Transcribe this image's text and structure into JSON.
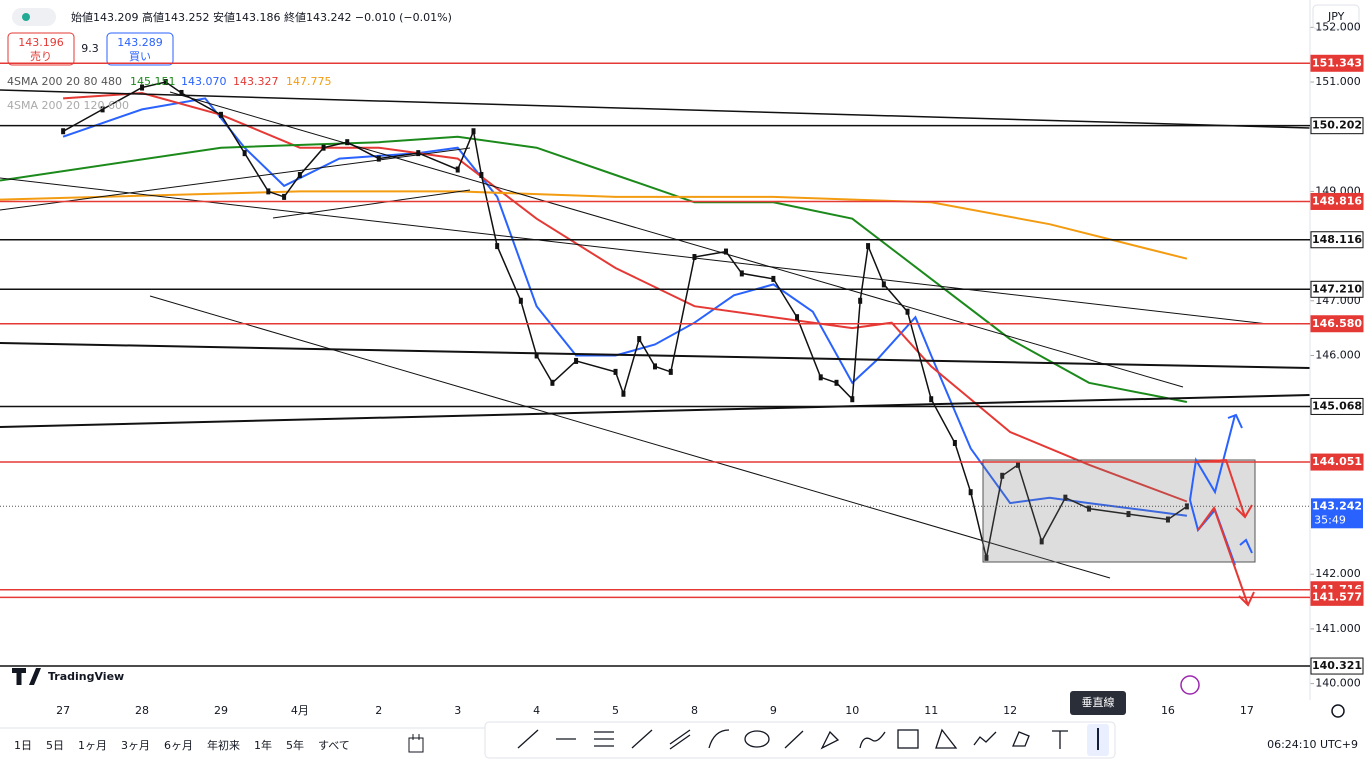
{
  "header": {
    "ohlc": "始値143.209 高値143.252 安値143.186 終値143.242 −0.010 (−0.01%)",
    "sell_price": "143.196",
    "sell_label": "売り",
    "spread": "9.3",
    "buy_price": "143.289",
    "buy_label": "買い",
    "currency": "JPY"
  },
  "indicators": [
    {
      "name": "4SMA 200 20 80 480",
      "values": [
        "145.151",
        "143.070",
        "143.327",
        "147.775"
      ]
    },
    {
      "name": "4SMA 200 20 120 600"
    }
  ],
  "chart": {
    "type": "candlestick-close",
    "ylim": [
      139.7,
      152.5
    ],
    "xlim": [
      -0.8,
      15.8
    ],
    "yticks": [
      {
        "value": 152,
        "label": "152.000"
      },
      {
        "value": 151,
        "label": "151.000"
      },
      {
        "value": 149,
        "label": "149.000"
      },
      {
        "value": 147,
        "label": "147.000"
      },
      {
        "value": 146,
        "label": "146.000"
      },
      {
        "value": 142,
        "label": "142.000"
      },
      {
        "value": 141,
        "label": "141.000"
      },
      {
        "value": 140,
        "label": "140.000"
      }
    ],
    "x_labels": [
      "27",
      "28",
      "29",
      "4月",
      "2",
      "3",
      "4",
      "5",
      "8",
      "9",
      "10",
      "11",
      "12",
      null,
      "16",
      "17"
    ],
    "price": {
      "color": "#111111",
      "x": [
        0,
        0.5,
        1,
        1.3,
        1.5,
        2,
        2.3,
        2.6,
        2.8,
        3,
        3.3,
        3.6,
        4,
        4.5,
        5,
        5.2,
        5.3,
        5.5,
        5.8,
        6,
        6.2,
        6.5,
        7,
        7.1,
        7.3,
        7.5,
        7.7,
        8,
        8.4,
        8.6,
        9,
        9.3,
        9.6,
        9.8,
        10,
        10.1,
        10.2,
        10.4,
        10.7,
        11,
        11.3,
        11.5,
        11.7,
        11.9,
        12.1,
        12.4,
        12.7,
        13,
        13.5,
        14,
        14.24
      ],
      "values": [
        150.1,
        150.5,
        150.9,
        151.0,
        150.8,
        150.4,
        149.7,
        149.0,
        148.9,
        149.3,
        149.8,
        149.9,
        149.6,
        149.7,
        149.4,
        150.1,
        149.3,
        148.0,
        147.0,
        146.0,
        145.5,
        145.9,
        145.7,
        145.3,
        146.3,
        145.8,
        145.7,
        147.8,
        147.9,
        147.5,
        147.4,
        146.7,
        145.6,
        145.5,
        145.2,
        147.0,
        148.0,
        147.3,
        146.8,
        145.2,
        144.4,
        143.5,
        142.3,
        143.8,
        144.0,
        142.6,
        143.4,
        143.2,
        143.1,
        143.0,
        143.24
      ]
    },
    "series": [
      {
        "color": "#2962ff",
        "x": [
          0,
          1,
          1.8,
          2.3,
          2.8,
          3.5,
          4.5,
          5,
          5.5,
          6,
          6.5,
          7,
          7.5,
          8,
          8.5,
          9,
          9.5,
          10,
          10.3,
          10.8,
          11,
          11.5,
          12,
          12.5,
          13,
          14.24
        ],
        "values": [
          150.0,
          150.5,
          150.7,
          149.8,
          149.1,
          149.6,
          149.7,
          149.8,
          148.9,
          146.9,
          146.0,
          146.0,
          146.2,
          146.6,
          147.1,
          147.3,
          146.8,
          145.5,
          145.9,
          146.7,
          146.0,
          144.3,
          143.3,
          143.4,
          143.3,
          143.07
        ]
      },
      {
        "color": "#e53935",
        "x": [
          0,
          1,
          2,
          3,
          4,
          5,
          6,
          7,
          8,
          9,
          10,
          10.5,
          11,
          12,
          13,
          14.24
        ],
        "values": [
          150.7,
          150.8,
          150.4,
          149.8,
          149.8,
          149.6,
          148.5,
          147.6,
          146.9,
          146.7,
          146.5,
          146.6,
          145.8,
          144.6,
          144.0,
          143.33
        ]
      },
      {
        "color": "#1b8a1b",
        "x": [
          -0.8,
          2,
          4,
          5,
          6,
          7,
          8,
          9,
          10,
          11,
          12,
          13,
          14.24
        ],
        "values": [
          149.2,
          149.8,
          149.9,
          150.0,
          149.8,
          149.3,
          148.8,
          148.8,
          148.5,
          147.4,
          146.3,
          145.5,
          145.15
        ]
      },
      {
        "color": "#f39c12",
        "x": [
          -0.8,
          3,
          5,
          7,
          9,
          11,
          12.5,
          14.24
        ],
        "values": [
          148.85,
          149.0,
          149.0,
          148.9,
          148.9,
          148.8,
          148.4,
          147.77
        ]
      }
    ],
    "price_lines": [
      {
        "value": 151.343,
        "label": "151.343",
        "color": "#e53935"
      },
      {
        "value": 150.202,
        "label": "150.202",
        "color": "#111111"
      },
      {
        "value": 148.816,
        "label": "148.816",
        "color": "#e53935"
      },
      {
        "value": 148.116,
        "label": "148.116",
        "color": "#111111"
      },
      {
        "value": 147.21,
        "label": "147.210",
        "color": "#111111"
      },
      {
        "value": 146.58,
        "label": "146.580",
        "color": "#e53935"
      },
      {
        "value": 145.068,
        "label": "145.068",
        "color": "#111111"
      },
      {
        "value": 144.051,
        "label": "144.051",
        "color": "#e53935"
      },
      {
        "value": 141.716,
        "label": "141.716",
        "color": "#e53935"
      },
      {
        "value": 141.577,
        "label": "141.577",
        "color": "#e53935"
      },
      {
        "value": 140.321,
        "label": "140.321",
        "color": "#111111"
      }
    ],
    "last_price": {
      "value": 143.242,
      "label": "143.242",
      "countdown": "35:49",
      "color": "#2962ff"
    }
  },
  "logo": "TradingView",
  "tooltip": "垂直線",
  "ranges": [
    "1日",
    "5日",
    "1ヶ月",
    "3ヶ月",
    "6ヶ月",
    "年初来",
    "1年",
    "5年",
    "すべて"
  ],
  "clock": "06:24:10 UTC+9"
}
